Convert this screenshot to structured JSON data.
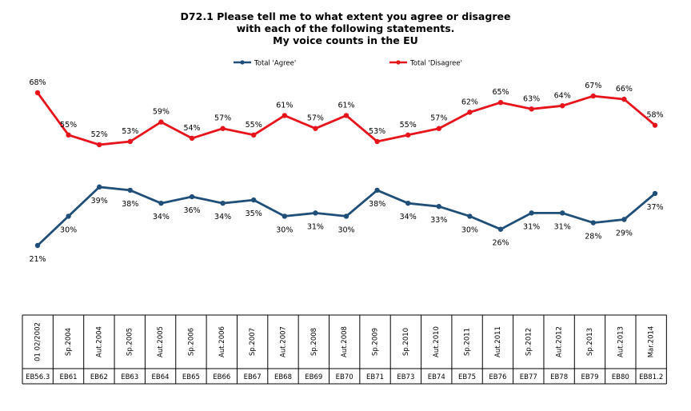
{
  "chart_data": {
    "type": "line",
    "title_lines": [
      "D72.1 Please tell me to what extent you agree or disagree",
      "with each of the following statements.",
      "My voice counts in the EU"
    ],
    "legend_position": "top-center",
    "categories": [
      {
        "date": "01 02/2002",
        "wave": "EB56.3"
      },
      {
        "date": "Sp.2004",
        "wave": "EB61"
      },
      {
        "date": "Aut.2004",
        "wave": "EB62"
      },
      {
        "date": "Sp.2005",
        "wave": "EB63"
      },
      {
        "date": "Aut.2005",
        "wave": "EB64"
      },
      {
        "date": "Sp.2006",
        "wave": "EB65"
      },
      {
        "date": "Aut.2006",
        "wave": "EB66"
      },
      {
        "date": "Sp.2007",
        "wave": "EB67"
      },
      {
        "date": "Aut.2007",
        "wave": "EB68"
      },
      {
        "date": "Sp.2008",
        "wave": "EB69"
      },
      {
        "date": "Aut.2008",
        "wave": "EB70"
      },
      {
        "date": "Sp.2009",
        "wave": "EB71"
      },
      {
        "date": "Sp.2010",
        "wave": "EB73"
      },
      {
        "date": "Aut.2010",
        "wave": "EB74"
      },
      {
        "date": "Sp.2011",
        "wave": "EB75"
      },
      {
        "date": "Aut.2011",
        "wave": "EB76"
      },
      {
        "date": "Sp.2012",
        "wave": "EB77"
      },
      {
        "date": "Aut.2012",
        "wave": "EB78"
      },
      {
        "date": "Sp.2013",
        "wave": "EB79"
      },
      {
        "date": "Aut.2013",
        "wave": "EB80"
      },
      {
        "date": "Mar.2014",
        "wave": "EB81.2"
      }
    ],
    "series": [
      {
        "name": "Total 'Agree'",
        "color": "#1F4E79",
        "label_position": "below",
        "values": [
          21,
          30,
          39,
          38,
          34,
          36,
          34,
          35,
          30,
          31,
          30,
          38,
          34,
          33,
          30,
          26,
          31,
          31,
          28,
          29,
          37
        ],
        "labels": [
          "21%",
          "30%",
          "39%",
          "38%",
          "34%",
          "36%",
          "34%",
          "35%",
          "30%",
          "31%",
          "30%",
          "38%",
          "34%",
          "33%",
          "30%",
          "26%",
          "31%",
          "31%",
          "28%",
          "29%",
          "37%"
        ]
      },
      {
        "name": "Total 'Disagree'",
        "color": "#E8141B",
        "label_position": "above",
        "values": [
          68,
          55,
          52,
          53,
          59,
          54,
          57,
          55,
          61,
          57,
          61,
          53,
          55,
          57,
          62,
          65,
          63,
          64,
          67,
          66,
          58
        ],
        "labels": [
          "68%",
          "55%",
          "52%",
          "53%",
          "59%",
          "54%",
          "57%",
          "55%",
          "61%",
          "57%",
          "61%",
          "53%",
          "55%",
          "57%",
          "62%",
          "65%",
          "63%",
          "64%",
          "67%",
          "66%",
          "58%"
        ]
      }
    ],
    "ylim": [
      10,
      80
    ]
  }
}
